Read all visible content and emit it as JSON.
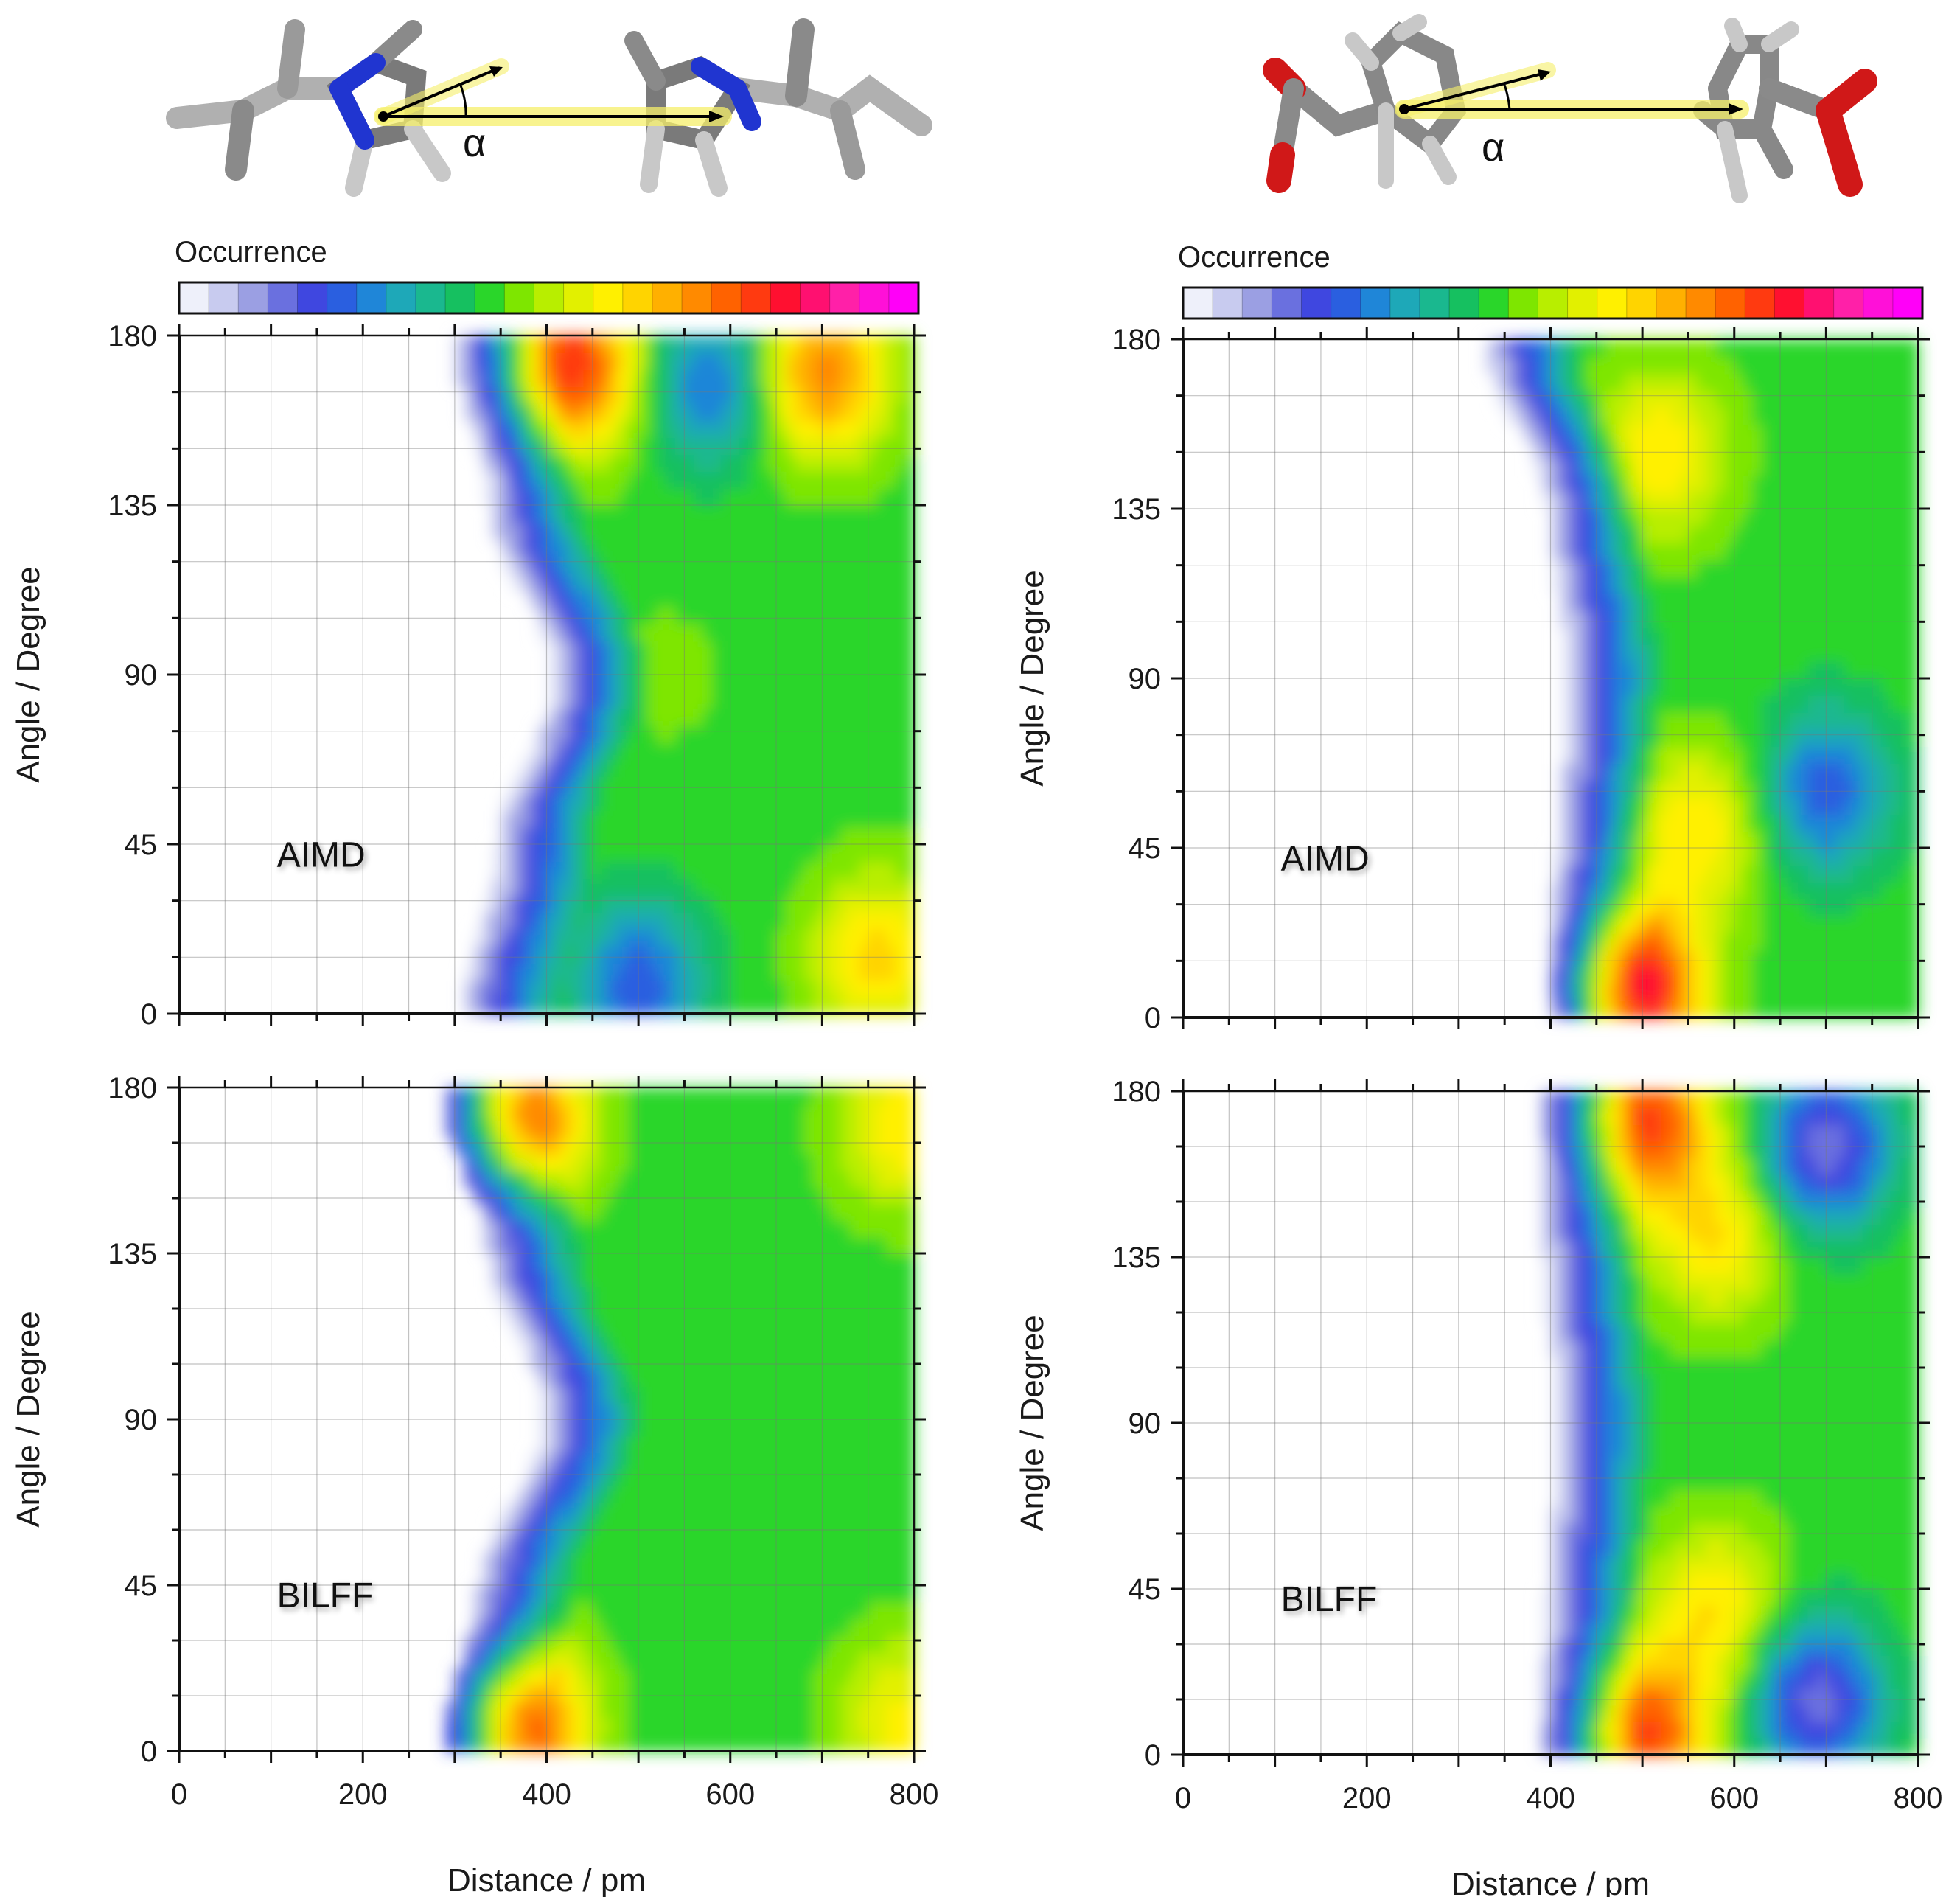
{
  "figure": {
    "colorbar_label": "Occurrence",
    "colormap": [
      "#eef0fa",
      "#c8cbef",
      "#9b9fe3",
      "#6a70df",
      "#3f47e0",
      "#2a5fe0",
      "#1f86d8",
      "#1ea8b8",
      "#1ab88f",
      "#16c060",
      "#2ad62a",
      "#7ee600",
      "#b8ee00",
      "#e2f000",
      "#fff000",
      "#ffd400",
      "#ffb000",
      "#ff8a00",
      "#ff6200",
      "#ff3a10",
      "#ff1030",
      "#ff1070",
      "#ff20a8",
      "#ff10d8",
      "#ff00f8"
    ],
    "molecules": [
      {
        "name": "imidazolium-cation-dimer",
        "angle_symbol": "α"
      },
      {
        "name": "benzoate-anion-dimer",
        "angle_symbol": "α"
      }
    ]
  },
  "chart_data": [
    {
      "type": "heatmap",
      "id": "top-left",
      "label": "AIMD",
      "xlabel": "",
      "ylabel": "Angle / Degree",
      "xlim": [
        0,
        800
      ],
      "ylim": [
        0,
        180
      ],
      "xticks": [
        0,
        200,
        400,
        600,
        800
      ],
      "yticks": [
        0,
        45,
        90,
        135,
        180
      ],
      "xtick_labels_shown": false,
      "onset_distance_pm": {
        "0": 320,
        "45": 360,
        "90": 420,
        "135": 350,
        "180": 310
      },
      "hotspots": [
        {
          "distance": 430,
          "angle": 172,
          "level": 0.8
        },
        {
          "distance": 700,
          "angle": 170,
          "level": 0.72
        },
        {
          "distance": 760,
          "angle": 15,
          "level": 0.62
        },
        {
          "distance": 580,
          "angle": 168,
          "level": 0.22
        },
        {
          "distance": 500,
          "angle": 8,
          "level": 0.2
        },
        {
          "distance": 530,
          "angle": 90,
          "level": 0.45
        }
      ]
    },
    {
      "type": "heatmap",
      "id": "top-right",
      "label": "AIMD",
      "xlabel": "",
      "ylabel": "Angle / Degree",
      "xlim": [
        0,
        800
      ],
      "ylim": [
        0,
        180
      ],
      "xticks": [
        0,
        200,
        400,
        600,
        800
      ],
      "yticks": [
        0,
        45,
        90,
        135,
        180
      ],
      "xtick_labels_shown": false,
      "onset_distance_pm": {
        "0": 420,
        "45": 420,
        "90": 430,
        "135": 410,
        "180": 340
      },
      "hotspots": [
        {
          "distance": 490,
          "angle": 8,
          "level": 0.9
        },
        {
          "distance": 520,
          "angle": 150,
          "level": 0.6
        },
        {
          "distance": 560,
          "angle": 50,
          "level": 0.6
        },
        {
          "distance": 700,
          "angle": 60,
          "level": 0.2
        }
      ]
    },
    {
      "type": "heatmap",
      "id": "bottom-left",
      "label": "BILFF",
      "xlabel": "Distance / pm",
      "ylabel": "Angle / Degree",
      "xlim": [
        0,
        800
      ],
      "ylim": [
        0,
        180
      ],
      "xticks": [
        0,
        200,
        400,
        600,
        800
      ],
      "yticks": [
        0,
        45,
        90,
        135,
        180
      ],
      "xtick_labels_shown": true,
      "onset_distance_pm": {
        "0": 300,
        "45": 340,
        "90": 410,
        "135": 350,
        "180": 300
      },
      "hotspots": [
        {
          "distance": 370,
          "angle": 172,
          "level": 0.78
        },
        {
          "distance": 370,
          "angle": 8,
          "level": 0.8
        },
        {
          "distance": 790,
          "angle": 170,
          "level": 0.6
        },
        {
          "distance": 790,
          "angle": 8,
          "level": 0.58
        }
      ]
    },
    {
      "type": "heatmap",
      "id": "bottom-right",
      "label": "BILFF",
      "xlabel": "Distance / pm",
      "ylabel": "Angle / Degree",
      "xlim": [
        0,
        800
      ],
      "ylim": [
        0,
        180
      ],
      "xticks": [
        0,
        200,
        400,
        600,
        800
      ],
      "yticks": [
        0,
        45,
        90,
        135,
        180
      ],
      "xtick_labels_shown": true,
      "onset_distance_pm": {
        "0": 400,
        "45": 410,
        "90": 420,
        "135": 405,
        "180": 400
      },
      "hotspots": [
        {
          "distance": 505,
          "angle": 172,
          "level": 0.78
        },
        {
          "distance": 505,
          "angle": 6,
          "level": 0.78
        },
        {
          "distance": 580,
          "angle": 140,
          "level": 0.6
        },
        {
          "distance": 580,
          "angle": 40,
          "level": 0.6
        },
        {
          "distance": 700,
          "angle": 165,
          "level": 0.12
        },
        {
          "distance": 690,
          "angle": 15,
          "level": 0.12
        }
      ]
    }
  ]
}
